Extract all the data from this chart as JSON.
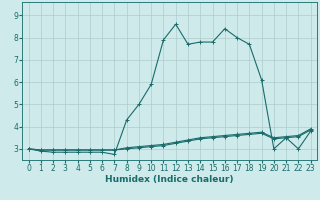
{
  "xlabel": "Humidex (Indice chaleur)",
  "ylabel": "",
  "xlim": [
    -0.5,
    23.5
  ],
  "ylim": [
    2.5,
    9.6
  ],
  "bg_color": "#ceeaea",
  "grid_color": "#aecccc",
  "line_color": "#1a6b6b",
  "spine_color": "#2a7a7a",
  "x_ticks": [
    0,
    1,
    2,
    3,
    4,
    5,
    6,
    7,
    8,
    9,
    10,
    11,
    12,
    13,
    14,
    15,
    16,
    17,
    18,
    19,
    20,
    21,
    22,
    23
  ],
  "y_ticks": [
    3,
    4,
    5,
    6,
    7,
    8,
    9
  ],
  "line1_x": [
    0,
    1,
    2,
    3,
    4,
    5,
    6,
    7,
    8,
    9,
    10,
    11,
    12,
    13,
    14,
    15,
    16,
    17,
    18,
    19,
    20,
    21,
    22,
    23
  ],
  "line1_y": [
    3.0,
    2.9,
    2.85,
    2.85,
    2.85,
    2.85,
    2.85,
    2.75,
    4.3,
    5.0,
    5.9,
    7.9,
    8.6,
    7.7,
    7.8,
    7.8,
    8.4,
    8.0,
    7.7,
    6.1,
    3.0,
    3.5,
    3.0,
    3.8
  ],
  "line2_x": [
    0,
    1,
    2,
    3,
    4,
    5,
    6,
    7,
    8,
    9,
    10,
    11,
    12,
    13,
    14,
    15,
    16,
    17,
    18,
    19,
    20,
    21,
    22,
    23
  ],
  "line2_y": [
    3.0,
    2.95,
    2.95,
    2.95,
    2.95,
    2.95,
    2.95,
    2.95,
    3.05,
    3.1,
    3.15,
    3.2,
    3.3,
    3.4,
    3.5,
    3.55,
    3.6,
    3.65,
    3.7,
    3.75,
    3.5,
    3.55,
    3.6,
    3.9
  ],
  "line3_x": [
    0,
    1,
    2,
    3,
    4,
    5,
    6,
    7,
    8,
    9,
    10,
    11,
    12,
    13,
    14,
    15,
    16,
    17,
    18,
    19,
    20,
    21,
    22,
    23
  ],
  "line3_y": [
    3.0,
    2.95,
    2.95,
    2.95,
    2.95,
    2.95,
    2.95,
    2.95,
    3.0,
    3.05,
    3.1,
    3.15,
    3.25,
    3.35,
    3.45,
    3.5,
    3.55,
    3.6,
    3.65,
    3.7,
    3.45,
    3.5,
    3.55,
    3.85
  ],
  "tick_fontsize": 5.5,
  "xlabel_fontsize": 6.5
}
